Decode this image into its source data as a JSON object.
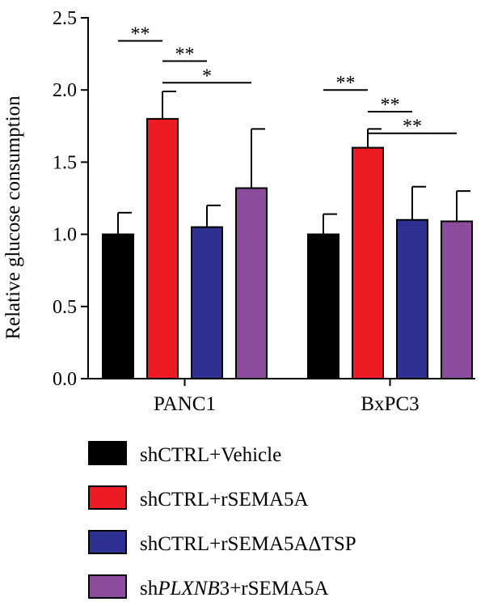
{
  "chart_data": {
    "type": "bar",
    "title": "",
    "xlabel": "",
    "ylabel": "Relative glucose consumption",
    "ylim": [
      0,
      2.5
    ],
    "yticks": [
      "0.0",
      "0.5",
      "1.0",
      "1.5",
      "2.0",
      "2.5"
    ],
    "grid": false,
    "legend_position": "bottom",
    "categories": [
      "PANC1",
      "BxPC3"
    ],
    "series": [
      {
        "name": "shCTRL+Vehicle",
        "color": "#000000",
        "values": [
          1.0,
          1.0
        ],
        "errors": [
          0.15,
          0.14
        ]
      },
      {
        "name": "shCTRL+rSEMA5A",
        "color": "#ed1c24",
        "values": [
          1.8,
          1.6
        ],
        "errors": [
          0.19,
          0.13
        ]
      },
      {
        "name": "shCTRL+rSEMA5AΔTSP",
        "color": "#2e3192",
        "values": [
          1.05,
          1.1
        ],
        "errors": [
          0.15,
          0.23
        ]
      },
      {
        "name_prefix": "sh",
        "name_italic": "PLXNB",
        "name_suffix": "3+rSEMA5A",
        "color": "#8b4c9c",
        "values": [
          1.32,
          1.09
        ],
        "errors": [
          0.41,
          0.21
        ]
      }
    ],
    "annotations": [
      {
        "category": 0,
        "from": 0,
        "to": 1,
        "label": "**",
        "y": 2.34
      },
      {
        "category": 0,
        "from": 1,
        "to": 2,
        "label": "**",
        "y": 2.2
      },
      {
        "category": 0,
        "from": 1,
        "to": 3,
        "label": "*",
        "y": 2.05
      },
      {
        "category": 1,
        "from": 0,
        "to": 1,
        "label": "**",
        "y": 2.0
      },
      {
        "category": 1,
        "from": 1,
        "to": 2,
        "label": "**",
        "y": 1.85
      },
      {
        "category": 1,
        "from": 1,
        "to": 3,
        "label": "**",
        "y": 1.7
      }
    ]
  }
}
